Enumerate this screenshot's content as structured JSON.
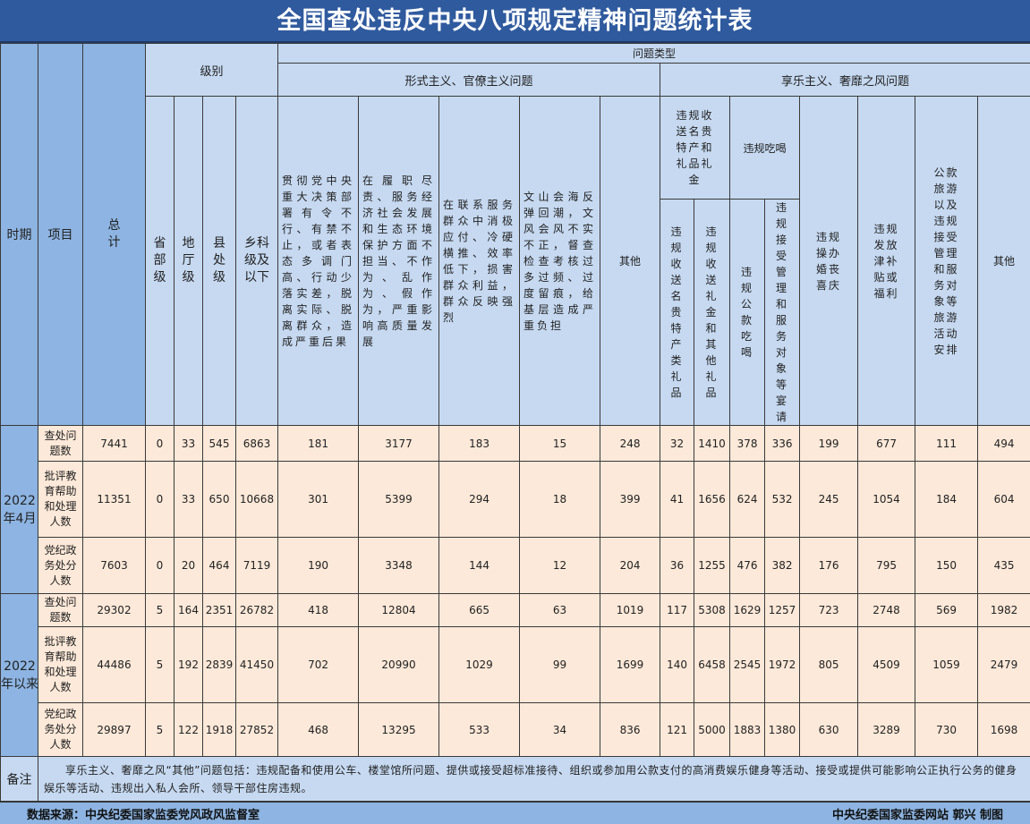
{
  "title": "全国查处违反中央八项规定精神问题统计表",
  "header": {
    "period": "时期",
    "item": "项目",
    "total": "总计",
    "level": "级别",
    "levels": [
      "省部级",
      "地厅级",
      "县处级",
      "乡科级及以下"
    ],
    "problem_type": "问题类型",
    "formalism": {
      "label": "形式主义、官僚主义问题",
      "cols": [
        "贯彻党中央重大决策部署有令不行、有禁不止，或者表态多调门高、行动少落实差，脱离实际、脱离群众，造成严重后果",
        "在履职尽责、服务经济社会发展和生态环境保护方面不担当、不作为、乱作为、假作为，严重影响高质量发展",
        "在联系服务群众中消极应付、冷硬横推、效率低下，损害群众利益，群众反映强烈",
        "文山会海反弹回潮，文风会风不实不正，督查检查考核过多过频、过度留痕，给基层造成严重负担",
        "其他"
      ]
    },
    "hedonism": {
      "label": "享乐主义、奢靡之风问题",
      "gifts": {
        "label": "违规收送名贵特产和礼品礼金",
        "cols": [
          "违规收送名贵特产类礼品",
          "违规收送礼金和其他礼品"
        ]
      },
      "dining": {
        "label": "违规吃喝",
        "cols": [
          "违规公款吃喝",
          "违规接受管理和服务对象等宴请"
        ]
      },
      "cols": [
        "违规操办婚丧喜庆",
        "违规发放津补贴或福利",
        "公款旅游以及违规接受管理和服务对象等旅游活动安排",
        "其他"
      ]
    }
  },
  "rows": [
    {
      "period": "2022年4月",
      "items": [
        {
          "label": "查处问题数",
          "values": [
            7441,
            0,
            33,
            545,
            6863,
            181,
            3177,
            183,
            15,
            248,
            32,
            1410,
            378,
            336,
            199,
            677,
            111,
            494
          ]
        },
        {
          "label": "批评教育帮助和处理人数",
          "values": [
            11351,
            0,
            33,
            650,
            10668,
            301,
            5399,
            294,
            18,
            399,
            41,
            1656,
            624,
            532,
            245,
            1054,
            184,
            604
          ]
        },
        {
          "label": "党纪政务处分人数",
          "values": [
            7603,
            0,
            20,
            464,
            7119,
            190,
            3348,
            144,
            12,
            204,
            36,
            1255,
            476,
            382,
            176,
            795,
            150,
            435
          ]
        }
      ]
    },
    {
      "period": "2022年以来",
      "items": [
        {
          "label": "查处问题数",
          "values": [
            29302,
            5,
            164,
            2351,
            26782,
            418,
            12804,
            665,
            63,
            1019,
            117,
            5308,
            1629,
            1257,
            723,
            2748,
            569,
            1982
          ]
        },
        {
          "label": "批评教育帮助和处理人数",
          "values": [
            44486,
            5,
            192,
            2839,
            41450,
            702,
            20990,
            1029,
            99,
            1699,
            140,
            6458,
            2545,
            1972,
            805,
            4509,
            1059,
            2479
          ]
        },
        {
          "label": "党纪政务处分人数",
          "values": [
            29897,
            5,
            122,
            1918,
            27852,
            468,
            13295,
            533,
            34,
            836,
            121,
            5000,
            1883,
            1380,
            630,
            3289,
            730,
            1698
          ]
        }
      ]
    }
  ],
  "note": {
    "label": "备注",
    "text": "享乐主义、奢靡之风“其他”问题包括：违规配备和使用公车、楼堂馆所问题、提供或接受超标准接待、组织或参加用公款支付的高消费娱乐健身等活动、接受或提供可能影响公正执行公务的健身娱乐等活动、违规出入私人会所、领导干部住房违规。"
  },
  "footer": {
    "source": "数据来源：中央纪委国家监委党风政风监督室",
    "credit": "中央纪委国家监委网站 郭兴 制图"
  },
  "colors": {
    "title_bg": "#2f5a9e",
    "header_bg": "#c6d9f1",
    "accent_bg": "#8db4e2",
    "data_bg": "#fde9d9"
  }
}
